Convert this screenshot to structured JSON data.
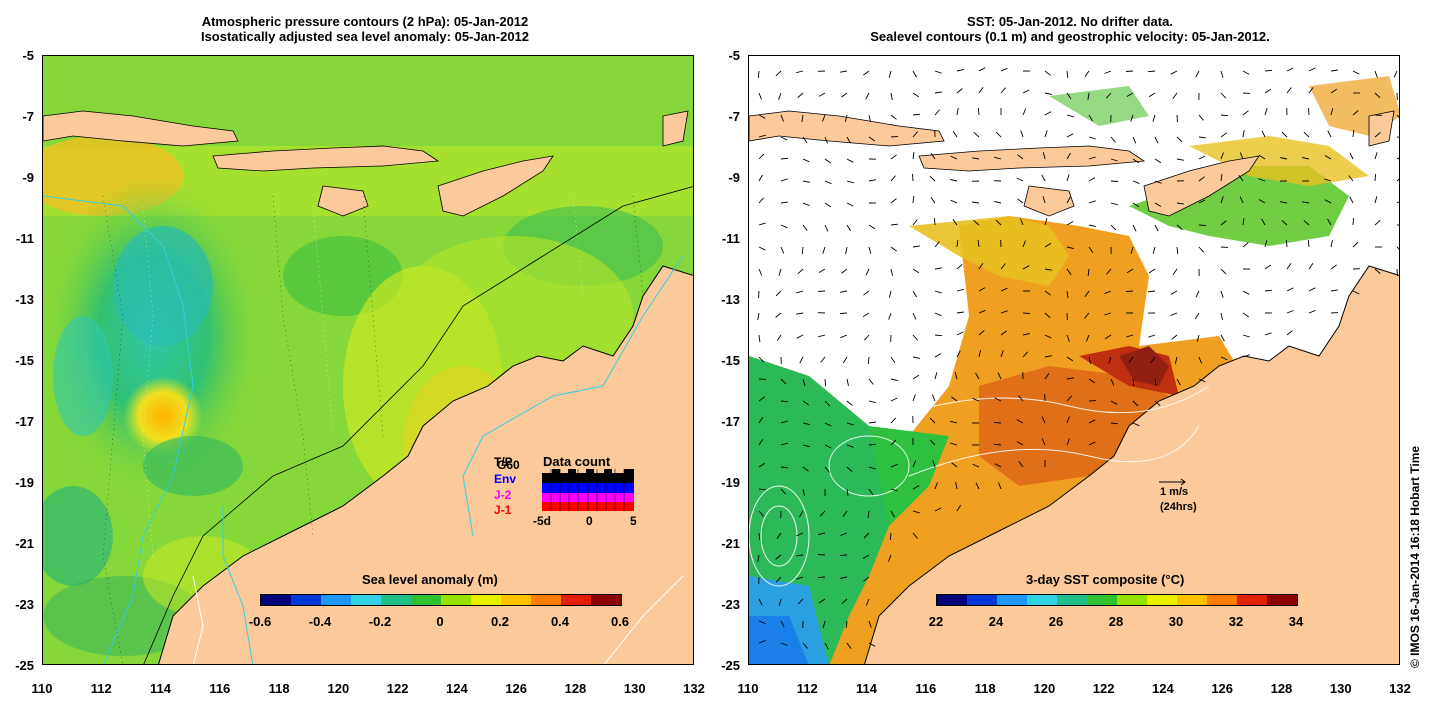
{
  "left_panel": {
    "title_line1": "Atmospheric pressure contours (2 hPa): 05-Jan-2012",
    "title_line2": "Isostatically adjusted sea level anomaly: 05-Jan-2012",
    "colorbar_label": "Sea level anomaly (m)",
    "colorbar_ticks": [
      "-0.6",
      "-0.4",
      "-0.2",
      "0",
      "0.2",
      "0.4",
      "0.6"
    ],
    "colorbar_colors": [
      "#00007a",
      "#0038d8",
      "#1e96ff",
      "#30d2e0",
      "#20c08a",
      "#30c030",
      "#98e000",
      "#e8f000",
      "#ffc000",
      "#ff7a00",
      "#e02000",
      "#8a0000"
    ],
    "legend": {
      "items": [
        {
          "label": "T/P",
          "color": "#000000"
        },
        {
          "label": "G60",
          "color": "#000000"
        },
        {
          "label": "Env",
          "color": "#0000ff"
        },
        {
          "label": "J-2",
          "color": "#ff00ff"
        },
        {
          "label": "J-1",
          "color": "#ff0000"
        }
      ],
      "data_count_title": "Data count",
      "data_count_ticks": [
        "-5d",
        "0",
        "5"
      ]
    }
  },
  "right_panel": {
    "title_line1": "SST: 05-Jan-2012. No drifter data.",
    "title_line2": "Sealevel contours (0.1 m) and geostrophic velocity: 05-Jan-2012.",
    "colorbar_label": "3-day SST composite (°C)",
    "colorbar_ticks": [
      "22",
      "24",
      "26",
      "28",
      "30",
      "32",
      "34"
    ],
    "colorbar_colors": [
      "#00007a",
      "#0038d8",
      "#1e96ff",
      "#30d2e0",
      "#20c08a",
      "#30c030",
      "#98e000",
      "#e8f000",
      "#ffc000",
      "#ff7a00",
      "#e02000",
      "#8a0000"
    ],
    "velocity_scale_label": "1 m/s",
    "velocity_scale_sublabel": "(24hrs)"
  },
  "axes": {
    "y_ticks": [
      "-5",
      "-7",
      "-9",
      "-11",
      "-13",
      "-15",
      "-17",
      "-19",
      "-21",
      "-23",
      "-25"
    ],
    "x_ticks": [
      "110",
      "112",
      "114",
      "116",
      "118",
      "120",
      "122",
      "124",
      "126",
      "128",
      "130",
      "132"
    ]
  },
  "credit": "© IMOS 16-Jan-2014 16:18 Hobart Time",
  "colors": {
    "land": "#fbc99a",
    "ocean_green": "#7fd63a",
    "ocean_yellow": "#d8ec20",
    "sst_orange": "#f0a020"
  }
}
